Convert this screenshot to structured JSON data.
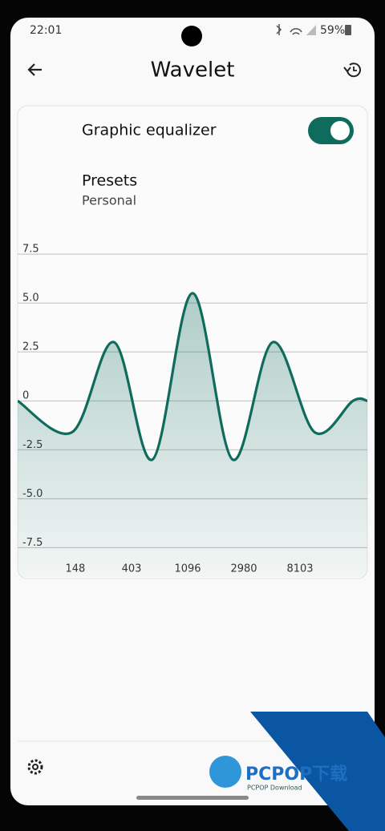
{
  "status_bar": {
    "time": "22:01",
    "battery": "59%"
  },
  "app_bar": {
    "title": "Wavelet"
  },
  "card": {
    "toggle_label": "Graphic equalizer",
    "toggle_on": true,
    "presets_label": "Presets",
    "preset_value": "Personal"
  },
  "chart_data": {
    "type": "line",
    "x": [
      53,
      140,
      295,
      585,
      1195,
      2440,
      4990,
      10500,
      20800,
      26900
    ],
    "series": [
      {
        "color": "#0f6b5c",
        "values": [
          0,
          -1.6,
          3.0,
          -3.0,
          5.5,
          -3.0,
          3.0,
          -1.6,
          0,
          0
        ]
      }
    ],
    "xlim": [
      53,
      26900
    ],
    "xscale": "log",
    "xticks": [
      148,
      403,
      1096,
      2980,
      8103
    ],
    "ylim": [
      -9,
      8.2
    ],
    "yticks": [
      7.5,
      {
        "value": 5,
        "label": "5.0"
      },
      2.5,
      0,
      -2.5,
      {
        "value": -5,
        "label": "-5.0"
      },
      -7.5
    ],
    "grid": true
  },
  "watermark": {
    "brand": "PCPOP下载",
    "sub": "PCPOP Download"
  }
}
